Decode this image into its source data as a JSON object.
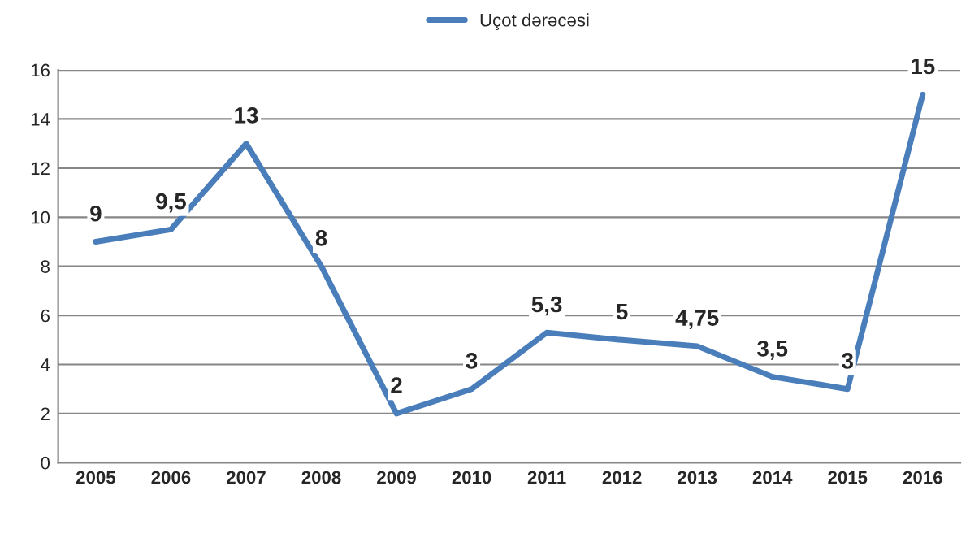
{
  "chart_data": {
    "type": "line",
    "categories": [
      "2005",
      "2006",
      "2007",
      "2008",
      "2009",
      "2010",
      "2011",
      "2012",
      "2013",
      "2014",
      "2015",
      "2016"
    ],
    "series": [
      {
        "name": "Uçot dərəcəsi",
        "color": "#4a7ebb",
        "values": [
          9,
          9.5,
          13,
          8,
          2,
          3,
          5.3,
          5,
          4.75,
          3.5,
          3,
          15
        ],
        "value_labels": [
          "9",
          "9,5",
          "13",
          "8",
          "2",
          "3",
          "5,3",
          "5",
          "4,75",
          "3,5",
          "3",
          "15"
        ]
      }
    ],
    "ylim": [
      0,
      16
    ],
    "yticks": [
      0,
      2,
      4,
      6,
      8,
      10,
      12,
      14,
      16
    ],
    "grid": "y",
    "legend": "top",
    "marker": "none",
    "line_style": "solid"
  }
}
